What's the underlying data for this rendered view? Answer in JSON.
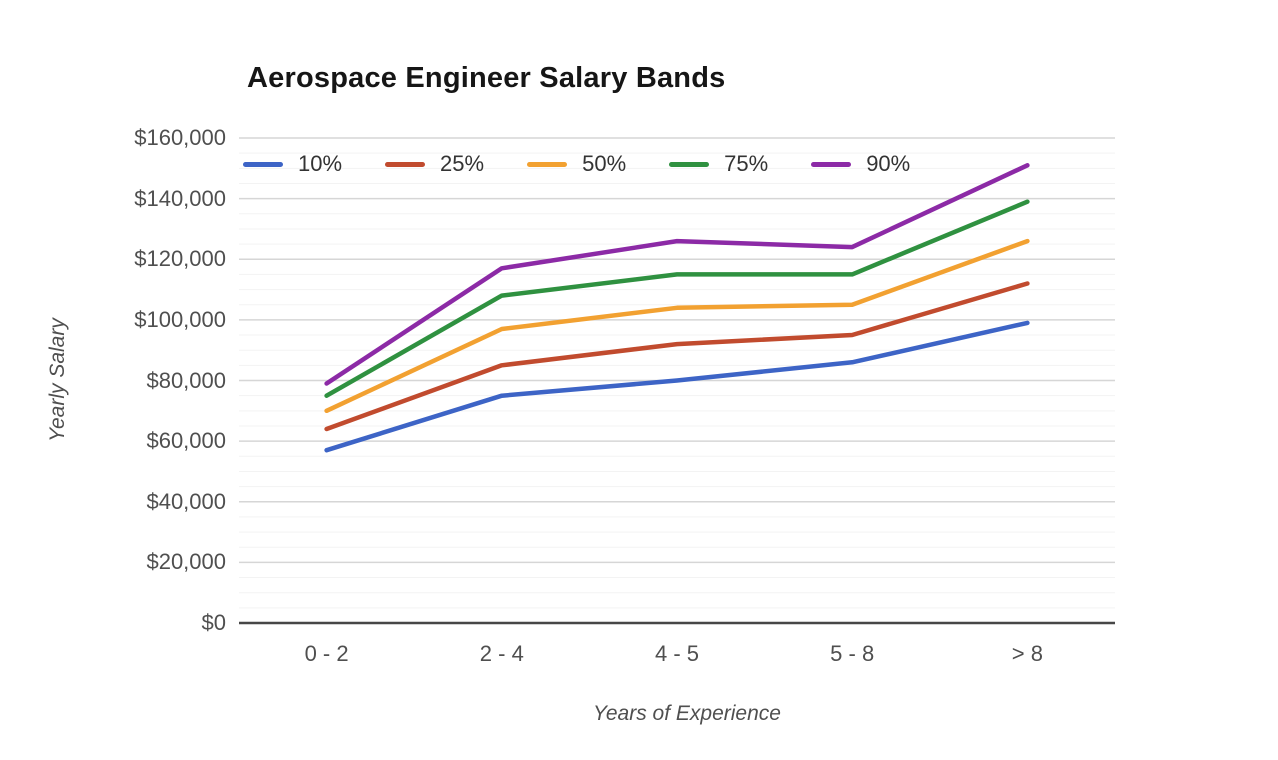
{
  "chart_data": {
    "type": "line",
    "title": "Aerospace Engineer Salary Bands",
    "xlabel": "Years of Experience",
    "ylabel": "Yearly Salary",
    "categories": [
      "0 - 2",
      "2 - 4",
      "4 - 5",
      "5 - 8",
      "> 8"
    ],
    "series": [
      {
        "name": "10%",
        "color": "#3d64c6",
        "values": [
          57000,
          75000,
          80000,
          86000,
          99000
        ]
      },
      {
        "name": "25%",
        "color": "#c14b2e",
        "values": [
          64000,
          85000,
          92000,
          95000,
          112000
        ]
      },
      {
        "name": "50%",
        "color": "#f2a131",
        "values": [
          70000,
          97000,
          104000,
          105000,
          126000
        ]
      },
      {
        "name": "75%",
        "color": "#2f9140",
        "values": [
          75000,
          108000,
          115000,
          115000,
          139000
        ]
      },
      {
        "name": "90%",
        "color": "#8c2aa6",
        "values": [
          79000,
          117000,
          126000,
          124000,
          151000
        ]
      }
    ],
    "ylim": [
      0,
      160000
    ],
    "y_tick_step": 20000,
    "y_minor_tick_step": 5000,
    "y_tick_labels": [
      "$0",
      "$20,000",
      "$40,000",
      "$60,000",
      "$80,000",
      "$100,000",
      "$120,000",
      "$140,000",
      "$160,000"
    ],
    "legend_position": "top",
    "grid": true
  },
  "colors": {
    "background": "#ffffff",
    "title_text": "#161616",
    "tick_text": "#4f4f4f",
    "legend_text": "#333333",
    "axis_line": "#474747",
    "grid_major": "#d6d6d6",
    "grid_minor": "#f3f3f3"
  }
}
